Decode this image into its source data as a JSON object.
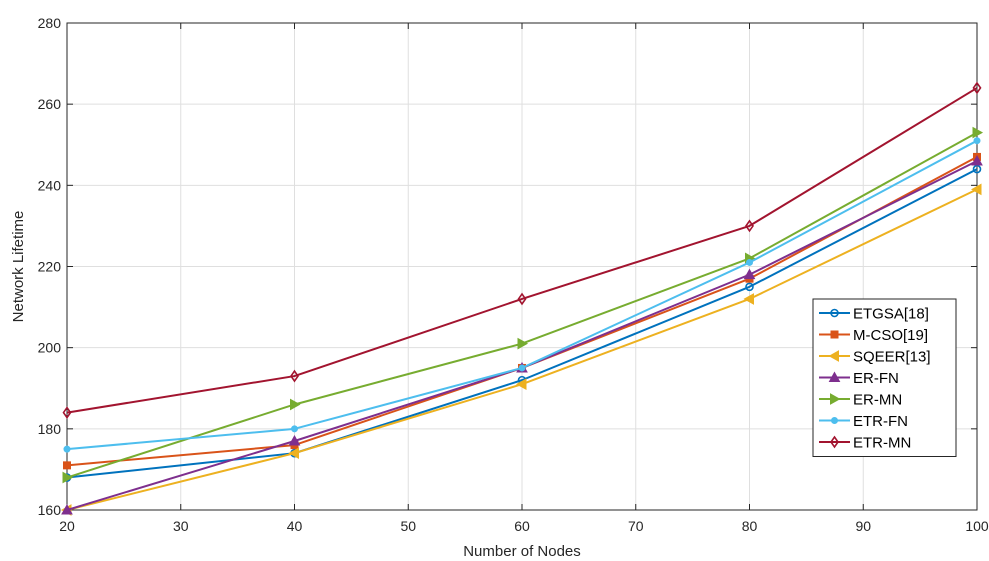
{
  "chart_data": {
    "type": "line",
    "xlabel": "Number of Nodes",
    "ylabel": "Network Lifetime",
    "xlim": [
      20,
      100
    ],
    "ylim": [
      160,
      280
    ],
    "xticks": [
      20,
      30,
      40,
      50,
      60,
      70,
      80,
      90,
      100
    ],
    "yticks": [
      160,
      180,
      200,
      220,
      240,
      260,
      280
    ],
    "grid": true,
    "legend_position": "right",
    "x": [
      20,
      40,
      60,
      80,
      100
    ],
    "series": [
      {
        "name": "ETGSA[18]",
        "values": [
          168,
          174,
          192,
          215,
          244
        ],
        "color": "#0072BD",
        "marker": "circle"
      },
      {
        "name": "M-CSO[19]",
        "values": [
          171,
          176,
          195,
          217,
          247
        ],
        "color": "#D95319",
        "marker": "square"
      },
      {
        "name": "SQEER[13]",
        "values": [
          160,
          174,
          191,
          212,
          239
        ],
        "color": "#EDB120",
        "marker": "triangle-left"
      },
      {
        "name": "ER-FN",
        "values": [
          160,
          177,
          195,
          218,
          246
        ],
        "color": "#7E2F8E",
        "marker": "triangle-up"
      },
      {
        "name": "ER-MN",
        "values": [
          168,
          186,
          201,
          222,
          253
        ],
        "color": "#77AC30",
        "marker": "triangle-right"
      },
      {
        "name": "ETR-FN",
        "values": [
          175,
          180,
          195,
          221,
          251
        ],
        "color": "#4DBEEE",
        "marker": "dot"
      },
      {
        "name": "ETR-MN",
        "values": [
          184,
          193,
          212,
          230,
          264
        ],
        "color": "#A2142F",
        "marker": "diamond"
      }
    ]
  }
}
